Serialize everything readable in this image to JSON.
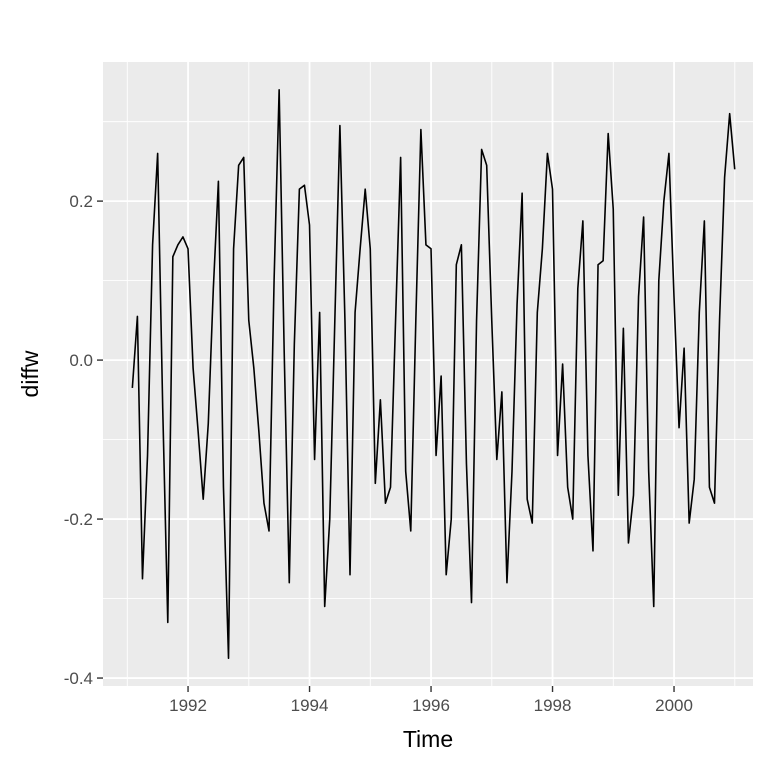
{
  "chart_data": {
    "type": "line",
    "title": "",
    "xlabel": "Time",
    "ylabel": "diffw",
    "xlim": [
      1990.6,
      2001.3
    ],
    "ylim": [
      -0.41,
      0.375
    ],
    "x_ticks": [
      1992,
      1994,
      1996,
      1998,
      2000
    ],
    "x_tick_labels": [
      "1992",
      "1994",
      "1996",
      "1998",
      "2000"
    ],
    "y_ticks": [
      -0.4,
      -0.2,
      0.0,
      0.2
    ],
    "y_tick_labels": [
      "-0.4",
      "-0.2",
      "0.0",
      "0.2"
    ],
    "grid": true,
    "legend": "none",
    "colors": {
      "panel": "#ebebeb",
      "grid": "#ffffff",
      "line": "#000000",
      "tick_text": "#4d4d4d"
    },
    "series": [
      {
        "x_start": 1991.083,
        "x_step": 0.08333,
        "values": [
          -0.035,
          0.055,
          -0.275,
          -0.12,
          0.145,
          0.26,
          -0.06,
          -0.33,
          0.13,
          0.145,
          0.155,
          0.14,
          -0.01,
          -0.09,
          -0.175,
          -0.08,
          0.09,
          0.225,
          -0.16,
          -0.375,
          0.14,
          0.245,
          0.255,
          0.05,
          -0.01,
          -0.09,
          -0.18,
          -0.215,
          0.1,
          0.34,
          0.01,
          -0.28,
          0.02,
          0.215,
          0.22,
          0.17,
          -0.125,
          0.06,
          -0.31,
          -0.2,
          0.05,
          0.295,
          0.05,
          -0.27,
          0.06,
          0.14,
          0.215,
          0.14,
          -0.155,
          -0.05,
          -0.18,
          -0.16,
          0.05,
          0.255,
          -0.14,
          -0.215,
          0.05,
          0.29,
          0.145,
          0.14,
          -0.12,
          -0.02,
          -0.27,
          -0.2,
          0.12,
          0.145,
          -0.13,
          -0.305,
          0.05,
          0.265,
          0.245,
          0.05,
          -0.125,
          -0.04,
          -0.28,
          -0.14,
          0.07,
          0.21,
          -0.175,
          -0.205,
          0.06,
          0.14,
          0.26,
          0.215,
          -0.12,
          -0.005,
          -0.16,
          -0.2,
          0.09,
          0.175,
          -0.12,
          -0.24,
          0.12,
          0.125,
          0.285,
          0.19,
          -0.17,
          0.04,
          -0.23,
          -0.17,
          0.08,
          0.18,
          -0.14,
          -0.31,
          0.1,
          0.2,
          0.26,
          0.08,
          -0.085,
          0.015,
          -0.205,
          -0.15,
          0.06,
          0.175,
          -0.16,
          -0.18,
          0.05,
          0.23,
          0.31,
          0.24
        ]
      }
    ]
  }
}
